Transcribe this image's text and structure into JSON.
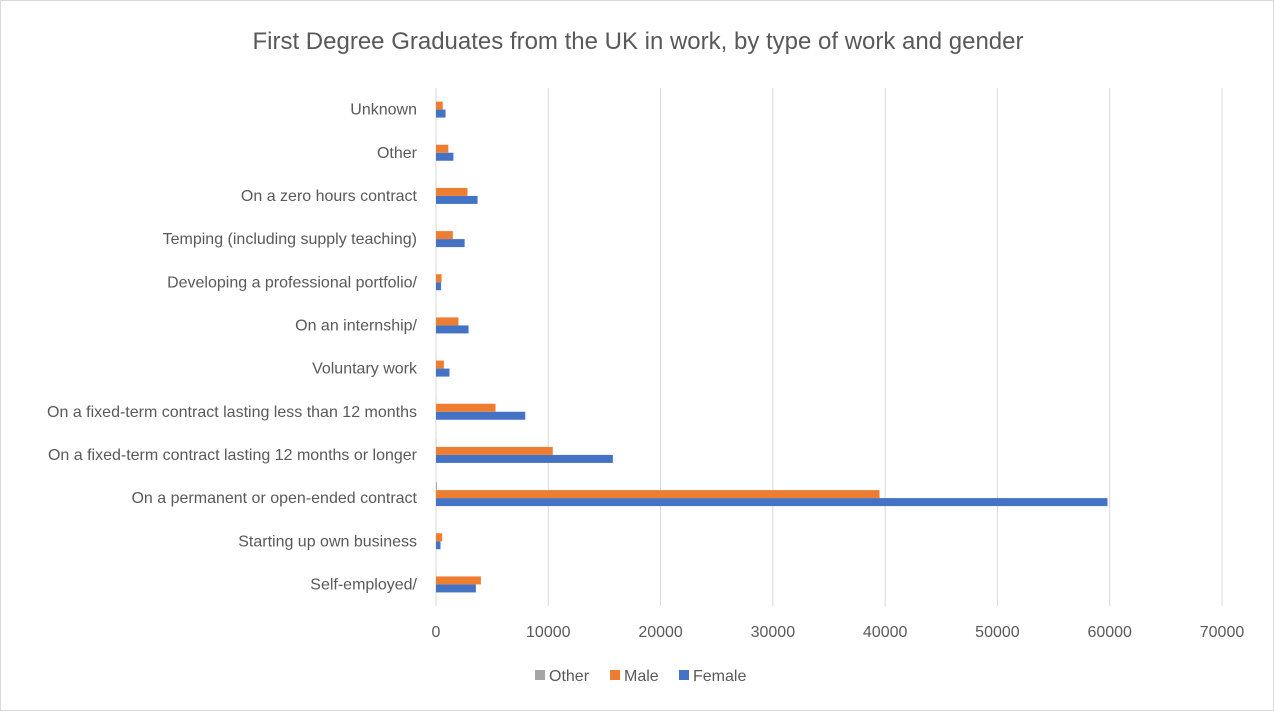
{
  "chart_data": {
    "type": "bar",
    "orientation": "horizontal",
    "title": "First Degree Graduates from the UK in work, by type of work and gender",
    "xlabel": "",
    "ylabel": "",
    "xlim": [
      0,
      70000
    ],
    "ticks": [
      "0",
      "10000",
      "20000",
      "30000",
      "40000",
      "50000",
      "60000",
      "70000"
    ],
    "tick_values": [
      0,
      10000,
      20000,
      30000,
      40000,
      50000,
      60000,
      70000
    ],
    "grid": true,
    "legend_position": "bottom",
    "categories": [
      "Unknown",
      "Other",
      "On a zero hours contract",
      "Temping (including supply teaching)",
      "Developing a professional portfolio/",
      "On an internship/",
      "Voluntary work",
      "On a fixed-term contract lasting less than 12 months",
      "On a fixed-term contract lasting 12 months or longer",
      "On a permanent or open-ended contract",
      "Starting up own business",
      "Self-employed/"
    ],
    "series": [
      {
        "name": "Other",
        "color": "#a5a5a5",
        "values": [
          5,
          5,
          10,
          5,
          5,
          5,
          5,
          10,
          20,
          80,
          5,
          10
        ]
      },
      {
        "name": "Male",
        "color": "#ed7d31",
        "values": [
          600,
          1100,
          2800,
          1500,
          500,
          2000,
          700,
          5300,
          10400,
          39500,
          550,
          4000
        ]
      },
      {
        "name": "Female",
        "color": "#4472c4",
        "values": [
          850,
          1550,
          3700,
          2550,
          450,
          2900,
          1200,
          7950,
          15750,
          59800,
          400,
          3550
        ]
      }
    ]
  }
}
